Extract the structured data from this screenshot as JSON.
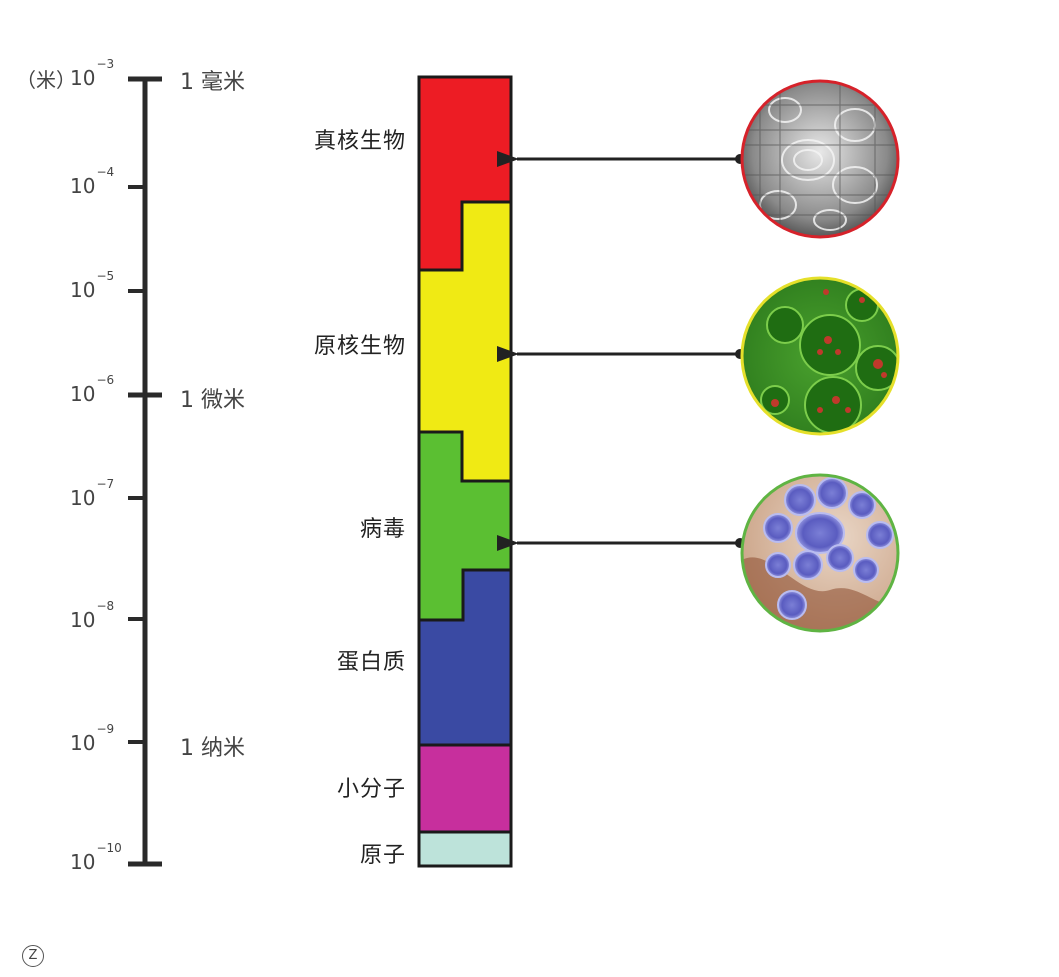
{
  "scale": {
    "unit_label": "（米）",
    "base": "10",
    "ticks": [
      {
        "exp": "−3",
        "unit": "1 毫米"
      },
      {
        "exp": "−4",
        "unit": ""
      },
      {
        "exp": "−5",
        "unit": ""
      },
      {
        "exp": "−6",
        "unit": "1 微米"
      },
      {
        "exp": "−7",
        "unit": ""
      },
      {
        "exp": "−8",
        "unit": ""
      },
      {
        "exp": "−9",
        "unit": "1 纳米"
      },
      {
        "exp": "−10",
        "unit": ""
      }
    ]
  },
  "categories": [
    {
      "label": "真核生物",
      "color": "#ed1c24"
    },
    {
      "label": "原核生物",
      "color": "#f0ea14"
    },
    {
      "label": "病毒",
      "color": "#5bbf32"
    },
    {
      "label": "蛋白质",
      "color": "#3a4aa3"
    },
    {
      "label": "小分子",
      "color": "#c72f9d"
    },
    {
      "label": "原子",
      "color": "#bde3da"
    }
  ],
  "images": [
    {
      "name": "eukaryote-micrograph",
      "ring": "#d6222a"
    },
    {
      "name": "prokaryote-micrograph",
      "ring": "#e5e02a"
    },
    {
      "name": "virus-micrograph",
      "ring": "#5fb443"
    }
  ],
  "footer_mark": "Z"
}
